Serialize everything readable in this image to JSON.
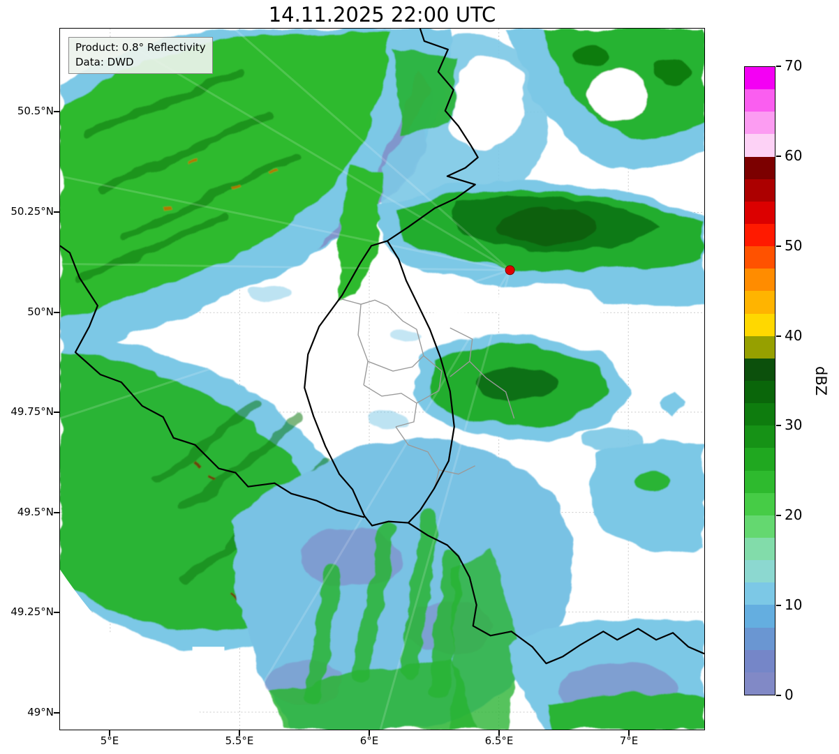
{
  "title": "14.11.2025 22:00 UTC",
  "info_box": {
    "product": "Product: 0.8° Reflectivity",
    "data_source": "Data: DWD"
  },
  "axes": {
    "y_ticks": [
      "50.5°N",
      "50.25°N",
      "50°N",
      "49.75°N",
      "49.5°N",
      "49.25°N",
      "49°N"
    ],
    "x_ticks": [
      "5°E",
      "5.5°E",
      "6°E",
      "6.5°E",
      "7°E"
    ]
  },
  "colorbar": {
    "label": "dBZ",
    "ticks": [
      "70",
      "60",
      "50",
      "40",
      "30",
      "20",
      "10",
      "0"
    ],
    "min": 0,
    "max": 70,
    "colors_top_to_bottom": [
      "#f400f4",
      "#fa5ef0",
      "#fc9cf2",
      "#fdd2f6",
      "#7c0000",
      "#ac0000",
      "#dc0000",
      "#ff1a00",
      "#ff5200",
      "#ff8c00",
      "#ffb400",
      "#ffd800",
      "#96a000",
      "#0c500c",
      "#0a660a",
      "#0e7c0e",
      "#169216",
      "#20a820",
      "#2eba2e",
      "#46cc46",
      "#64d870",
      "#82dcaa",
      "#8cd8d0",
      "#7cc8e6",
      "#64aee0",
      "#6a96d2",
      "#7586c8",
      "#8189c6"
    ]
  },
  "map": {
    "marker": {
      "name": "radar-site",
      "color": "#e00000"
    },
    "country_border_color": "#000000",
    "district_border_color": "#9a9a9a"
  }
}
